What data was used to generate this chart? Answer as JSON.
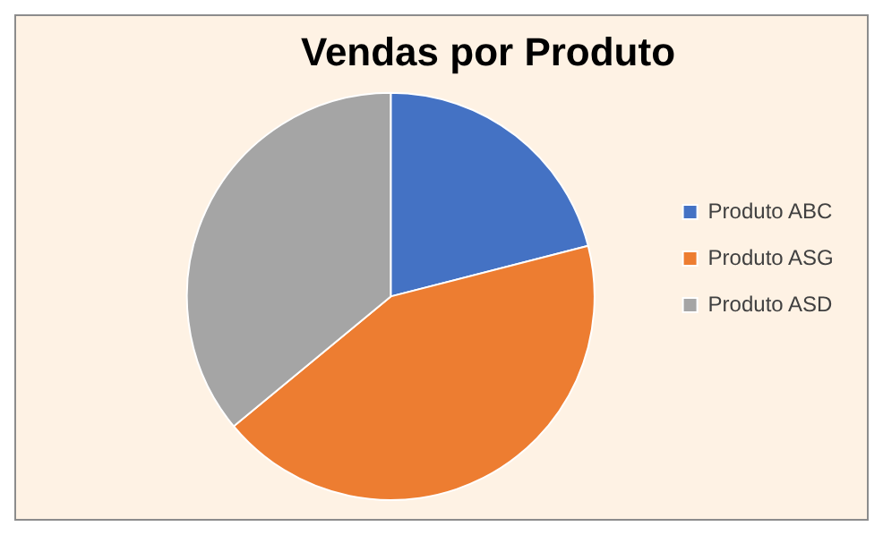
{
  "chart_data": {
    "type": "pie",
    "title": "Vendas por Produto",
    "categories": [
      "Produto ABC",
      "Produto ASG",
      "Produto ASD"
    ],
    "values": [
      21,
      43,
      36
    ],
    "colors": [
      "#4472c4",
      "#ed7d31",
      "#a5a5a5"
    ],
    "legend": "right"
  }
}
